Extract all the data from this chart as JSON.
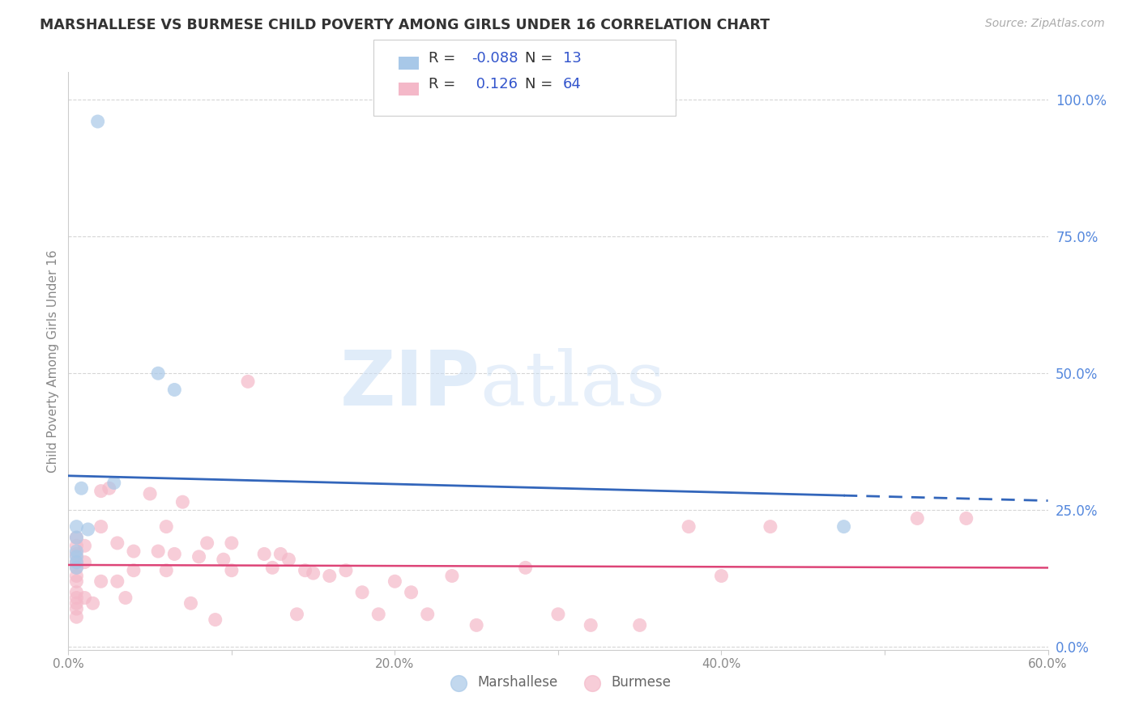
{
  "title": "MARSHALLESE VS BURMESE CHILD POVERTY AMONG GIRLS UNDER 16 CORRELATION CHART",
  "source": "Source: ZipAtlas.com",
  "ylabel": "Child Poverty Among Girls Under 16",
  "r_marshallese": -0.088,
  "n_marshallese": 13,
  "r_burmese": 0.126,
  "n_burmese": 64,
  "color_marshallese": "#a8c8e8",
  "color_burmese": "#f4b8c8",
  "line_color_marshallese": "#3366bb",
  "line_color_burmese": "#dd4477",
  "xlim": [
    0.0,
    0.6
  ],
  "ylim": [
    -0.005,
    1.05
  ],
  "xticks": [
    0.0,
    0.1,
    0.2,
    0.3,
    0.4,
    0.5,
    0.6
  ],
  "xtick_labels": [
    "0.0%",
    "",
    "20.0%",
    "",
    "40.0%",
    "",
    "60.0%"
  ],
  "yticks_right": [
    0.0,
    0.25,
    0.5,
    0.75,
    1.0
  ],
  "ytick_labels_right": [
    "0.0%",
    "25.0%",
    "50.0%",
    "75.0%",
    "100.0%"
  ],
  "background_color": "#ffffff",
  "grid_color": "#cccccc",
  "watermark_zip": "ZIP",
  "watermark_atlas": "atlas",
  "marshallese_x": [
    0.018,
    0.028,
    0.005,
    0.005,
    0.005,
    0.005,
    0.005,
    0.005,
    0.008,
    0.012,
    0.055,
    0.065,
    0.475
  ],
  "marshallese_y": [
    0.96,
    0.3,
    0.22,
    0.2,
    0.175,
    0.165,
    0.155,
    0.145,
    0.29,
    0.215,
    0.5,
    0.47,
    0.22
  ],
  "burmese_x": [
    0.005,
    0.005,
    0.005,
    0.005,
    0.005,
    0.005,
    0.005,
    0.005,
    0.005,
    0.005,
    0.005,
    0.005,
    0.01,
    0.01,
    0.01,
    0.015,
    0.02,
    0.02,
    0.02,
    0.025,
    0.03,
    0.03,
    0.035,
    0.04,
    0.04,
    0.05,
    0.055,
    0.06,
    0.06,
    0.065,
    0.07,
    0.075,
    0.08,
    0.085,
    0.09,
    0.095,
    0.1,
    0.1,
    0.11,
    0.12,
    0.125,
    0.13,
    0.135,
    0.14,
    0.145,
    0.15,
    0.16,
    0.17,
    0.18,
    0.19,
    0.2,
    0.21,
    0.22,
    0.235,
    0.25,
    0.28,
    0.3,
    0.32,
    0.35,
    0.38,
    0.4,
    0.43,
    0.52,
    0.55
  ],
  "burmese_y": [
    0.2,
    0.185,
    0.17,
    0.155,
    0.145,
    0.13,
    0.12,
    0.1,
    0.09,
    0.08,
    0.07,
    0.055,
    0.185,
    0.155,
    0.09,
    0.08,
    0.285,
    0.22,
    0.12,
    0.29,
    0.19,
    0.12,
    0.09,
    0.175,
    0.14,
    0.28,
    0.175,
    0.22,
    0.14,
    0.17,
    0.265,
    0.08,
    0.165,
    0.19,
    0.05,
    0.16,
    0.19,
    0.14,
    0.485,
    0.17,
    0.145,
    0.17,
    0.16,
    0.06,
    0.14,
    0.135,
    0.13,
    0.14,
    0.1,
    0.06,
    0.12,
    0.1,
    0.06,
    0.13,
    0.04,
    0.145,
    0.06,
    0.04,
    0.04,
    0.22,
    0.13,
    0.22,
    0.235,
    0.235
  ]
}
